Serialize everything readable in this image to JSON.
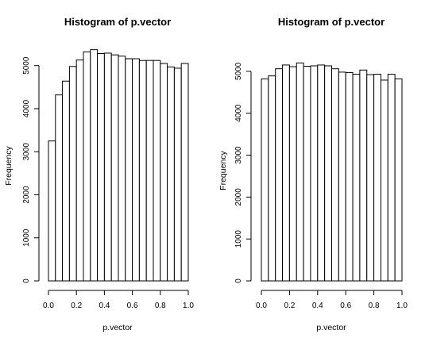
{
  "chart_data": [
    {
      "type": "bar",
      "title": "Histogram of p.vector",
      "xlabel": "p.vector",
      "ylabel": "Frequency",
      "xlim": [
        0,
        1
      ],
      "ylim": [
        0,
        5400
      ],
      "bin_width": 0.05,
      "bin_starts": [
        0.0,
        0.05,
        0.1,
        0.15,
        0.2,
        0.25,
        0.3,
        0.35,
        0.4,
        0.45,
        0.5,
        0.55,
        0.6,
        0.65,
        0.7,
        0.75,
        0.8,
        0.85,
        0.9,
        0.95
      ],
      "values": [
        3250,
        4320,
        4640,
        4980,
        5130,
        5320,
        5370,
        5280,
        5290,
        5250,
        5220,
        5160,
        5160,
        5120,
        5120,
        5120,
        5050,
        4970,
        4940,
        5050
      ],
      "x_ticks": [
        "0.0",
        "0.2",
        "0.4",
        "0.6",
        "0.8",
        "1.0"
      ],
      "y_ticks": [
        "0",
        "1000",
        "2000",
        "3000",
        "4000",
        "5000"
      ]
    },
    {
      "type": "bar",
      "title": "Histogram of p.vector",
      "xlabel": "p.vector",
      "ylabel": "Frequency",
      "xlim": [
        0,
        1
      ],
      "ylim": [
        0,
        5300
      ],
      "bin_width": 0.05,
      "bin_starts": [
        0.0,
        0.05,
        0.1,
        0.15,
        0.2,
        0.25,
        0.3,
        0.35,
        0.4,
        0.45,
        0.5,
        0.55,
        0.6,
        0.65,
        0.7,
        0.75,
        0.8,
        0.85,
        0.9,
        0.95
      ],
      "values": [
        4820,
        4890,
        5060,
        5150,
        5110,
        5200,
        5120,
        5130,
        5150,
        5130,
        5060,
        4980,
        4970,
        4930,
        5030,
        4920,
        4930,
        4790,
        4930,
        4820
      ],
      "x_ticks": [
        "0.0",
        "0.2",
        "0.4",
        "0.6",
        "0.8",
        "1.0"
      ],
      "y_ticks": [
        "0",
        "1000",
        "2000",
        "3000",
        "4000",
        "5000"
      ]
    }
  ]
}
